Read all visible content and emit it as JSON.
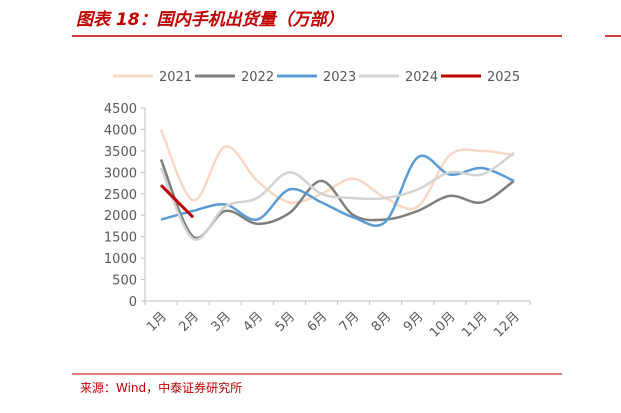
{
  "chart_data": {
    "type": "line",
    "title": "图表 18：国内手机出货量（万部）",
    "source": "来源：Wind，中泰证券研究所",
    "categories": [
      "1月",
      "2月",
      "3月",
      "4月",
      "5月",
      "6月",
      "7月",
      "8月",
      "9月",
      "10月",
      "11月",
      "12月"
    ],
    "series": [
      {
        "name": "2021",
        "color": "#f9d9c6",
        "values": [
          4000,
          2350,
          3600,
          2800,
          2300,
          2500,
          2850,
          2400,
          2200,
          3400,
          3500,
          3400
        ]
      },
      {
        "name": "2022",
        "color": "#7f7f7f",
        "values": [
          3300,
          1500,
          2100,
          1800,
          2050,
          2800,
          2000,
          1900,
          2100,
          2450,
          2300,
          2800
        ]
      },
      {
        "name": "2023",
        "color": "#5b9bd5",
        "values": [
          1900,
          2100,
          2250,
          1900,
          2600,
          2300,
          1950,
          1850,
          3350,
          2950,
          3100,
          2800
        ]
      },
      {
        "name": "2024",
        "color": "#d3d3d3",
        "values": [
          3100,
          1450,
          2200,
          2400,
          3000,
          2500,
          2400,
          2400,
          2600,
          3000,
          2950,
          3450
        ]
      },
      {
        "name": "2025",
        "color": "#c00000",
        "values": [
          2700,
          1950,
          null,
          null,
          null,
          null,
          null,
          null,
          null,
          null,
          null,
          null
        ]
      }
    ],
    "ylim": [
      0,
      4500
    ],
    "yticks": [
      0,
      500,
      1000,
      1500,
      2000,
      2500,
      3000,
      3500,
      4000,
      4500
    ]
  }
}
